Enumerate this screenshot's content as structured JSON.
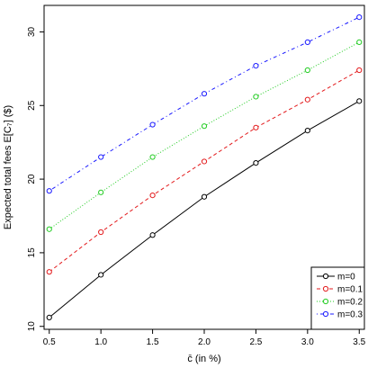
{
  "chart_data": {
    "type": "line",
    "xlabel": "c̄ (in %)",
    "ylabel": "Expected total fees E[C₇] ($)",
    "xlim": [
      0.45,
      3.55
    ],
    "ylim": [
      9.8,
      31.8
    ],
    "x_ticks": [
      "0.5",
      "1.0",
      "1.5",
      "2.0",
      "2.5",
      "3.0",
      "3.5"
    ],
    "y_ticks": [
      "10",
      "15",
      "20",
      "25",
      "30"
    ],
    "x": [
      0.5,
      1.0,
      1.5,
      2.0,
      2.5,
      3.0,
      3.5
    ],
    "grid": false,
    "legend_position": "bottom-right",
    "series": [
      {
        "name": "m=0",
        "color": "#000000",
        "dash": "solid",
        "values": [
          10.6,
          13.5,
          16.2,
          18.8,
          21.1,
          23.3,
          25.3
        ]
      },
      {
        "name": "m=0.1",
        "color": "#e31a1c",
        "dash": "dashed",
        "values": [
          13.7,
          16.4,
          18.9,
          21.2,
          23.5,
          25.4,
          27.4
        ]
      },
      {
        "name": "m=0.2",
        "color": "#22cc22",
        "dash": "dotted",
        "values": [
          16.6,
          19.1,
          21.5,
          23.6,
          25.6,
          27.4,
          29.3
        ]
      },
      {
        "name": "m=0.3",
        "color": "#1a1aff",
        "dash": "dotdash",
        "values": [
          19.2,
          21.5,
          23.7,
          25.8,
          27.7,
          29.3,
          31.0
        ]
      }
    ]
  }
}
